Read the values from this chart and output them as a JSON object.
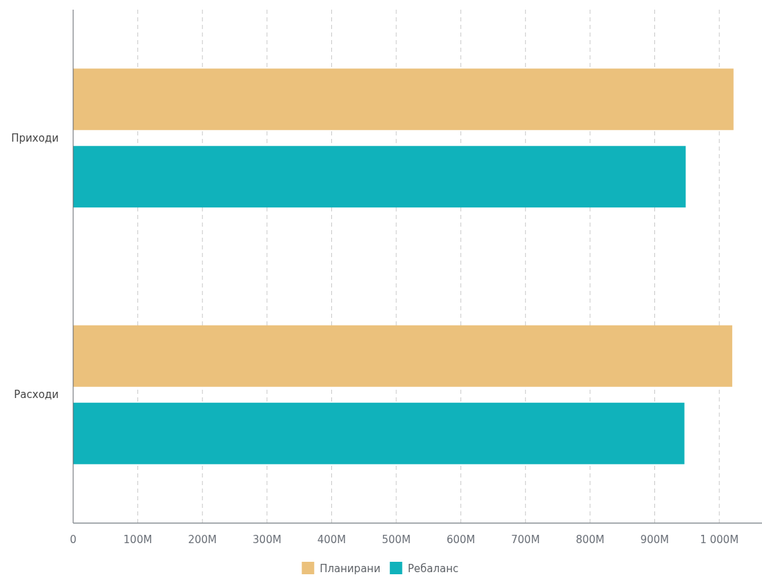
{
  "chart_data": {
    "type": "bar",
    "orientation": "horizontal",
    "categories": [
      "Приходи",
      "Расходи"
    ],
    "series": [
      {
        "name": "Планирани",
        "color": "#ebc17c",
        "values": [
          1022,
          1020
        ]
      },
      {
        "name": "Ребаланс",
        "color": "#10b2bb",
        "values": [
          948,
          946
        ]
      }
    ],
    "xlim": [
      0,
      1065
    ],
    "xticks": [
      0,
      {
        "value": 100,
        "label": "100M"
      },
      {
        "value": 200,
        "label": "200M"
      },
      {
        "value": 300,
        "label": "300M"
      },
      {
        "value": 400,
        "label": "400M"
      },
      {
        "value": 500,
        "label": "500M"
      },
      {
        "value": 600,
        "label": "600M"
      },
      {
        "value": 700,
        "label": "700M"
      },
      {
        "value": 800,
        "label": "800M"
      },
      {
        "value": 900,
        "label": "900M"
      },
      {
        "value": 1000,
        "label": "1 000M"
      }
    ],
    "grid": "x",
    "legend": "bottom"
  }
}
